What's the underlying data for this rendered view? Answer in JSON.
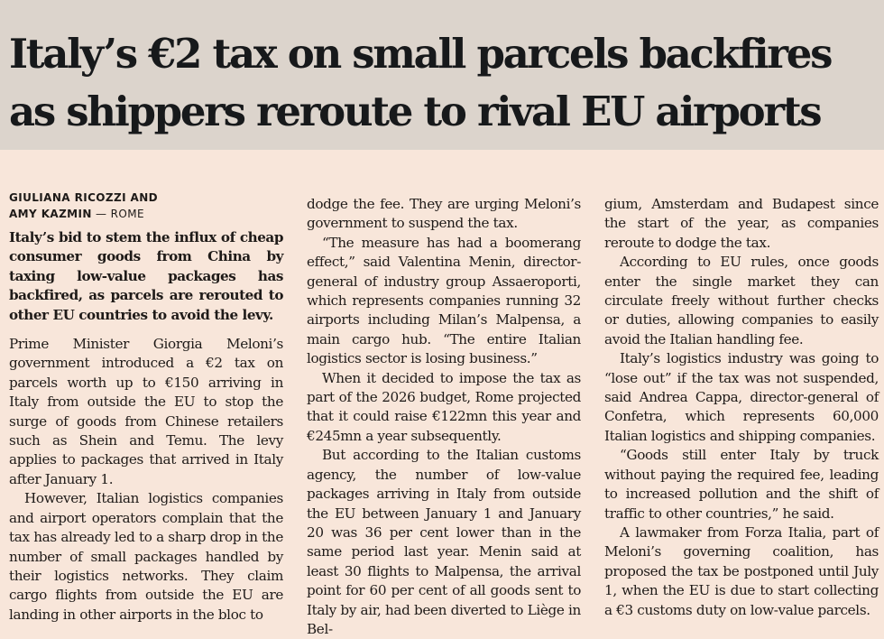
{
  "headline": {
    "line1": "Italy’s €2 tax on small parcels backfires",
    "line2": "as shippers reroute to rival EU airports"
  },
  "byline": {
    "authors_line1": "GIULIANA RICOZZI AND",
    "authors_line2": "AMY KAZMIN",
    "location": " — ROME"
  },
  "lede": "Italy’s bid to stem the influx of cheap consumer goods from China by taxing low-value packages has backfired, as parcels are rerouted to other EU countries to avoid the levy.",
  "body": {
    "p1": "Prime Minister Giorgia Meloni’s government introduced a €2 tax on parcels worth up to €150 arriving in Italy from outside the EU to stop the surge of goods from Chinese retailers such as Shein and Temu. The levy applies to packages that arrived in Italy after January 1.",
    "p2": "However, Italian logistics companies and airport operators complain that the tax has already led to a sharp drop in the number of small packages handled by their logistics networks. They claim cargo flights from outside the EU are landing in other airports in the bloc to dodge the fee. They are urging Meloni’s government to suspend the tax.",
    "p3": "“The measure has had a boomerang effect,” said Valentina Menin, director-general of industry group Assaeroporti, which represents companies running 32 airports including Milan’s Malpensa, a main cargo hub. “The entire Italian logistics sector is losing business.”",
    "p4": "When it decided to impose the tax as part of the 2026 budget, Rome projected that it could raise €122mn this year and €245mn a year subsequently.",
    "p5": "But according to the Italian customs agency, the number of low-value packages arriving in Italy from outside the EU between January 1 and January 20 was 36 per cent lower than in the same period last year. Menin said at least 30 flights to Malpensa, the arrival point for 60 per cent of all goods sent to Italy by air, had been diverted to Liège in Belgium, Amsterdam and Budapest since the start of the year, as companies reroute to dodge the tax.",
    "p6": "According to EU rules, once goods enter the single market they can circulate freely without further checks or duties, allowing companies to easily avoid the Italian handling fee.",
    "p7": "Italy’s logistics industry was going to “lose out” if the tax was not suspended, said Andrea Cappa, director-general of Confetra, which represents 60,000 Italian logistics and shipping companies.",
    "p8": "“Goods still enter Italy by truck without paying the required fee, leading to increased pollution and the shift of traffic to other countries,” he said.",
    "p9": "A lawmaker from Forza Italia, part of Meloni’s governing coalition, has proposed the tax be postponed until July 1, when the EU is due to start collecting a €3 customs duty on low-value parcels."
  },
  "column_text": {
    "col1_p2": "However, Italian logistics companies and airport operators complain that the tax has already led to a sharp drop in the number of small packages handled by their logistics networks. They claim cargo flights from outside the EU are landing in other airports in the bloc to",
    "col2_p2_cont": "dodge the fee. They are urging Meloni’s government to suspend the tax.",
    "col2_p5": "But according to the Italian customs agency, the number of low-value packages arriving in Italy from outside the EU between January 1 and January 20 was 36 per cent lower than in the same period last year. Menin said at least 30 flights to Malpensa, the arrival point for 60 per cent of all goods sent to Italy by air, had been diverted to Liège in Bel-",
    "col3_p5_cont": "gium, Amsterdam and Budapest since the start of the year, as companies reroute to dodge the tax."
  },
  "colors": {
    "page_background": "#f8e6da",
    "headline_band": "#dcd4cc",
    "text": "#1e1a18"
  }
}
